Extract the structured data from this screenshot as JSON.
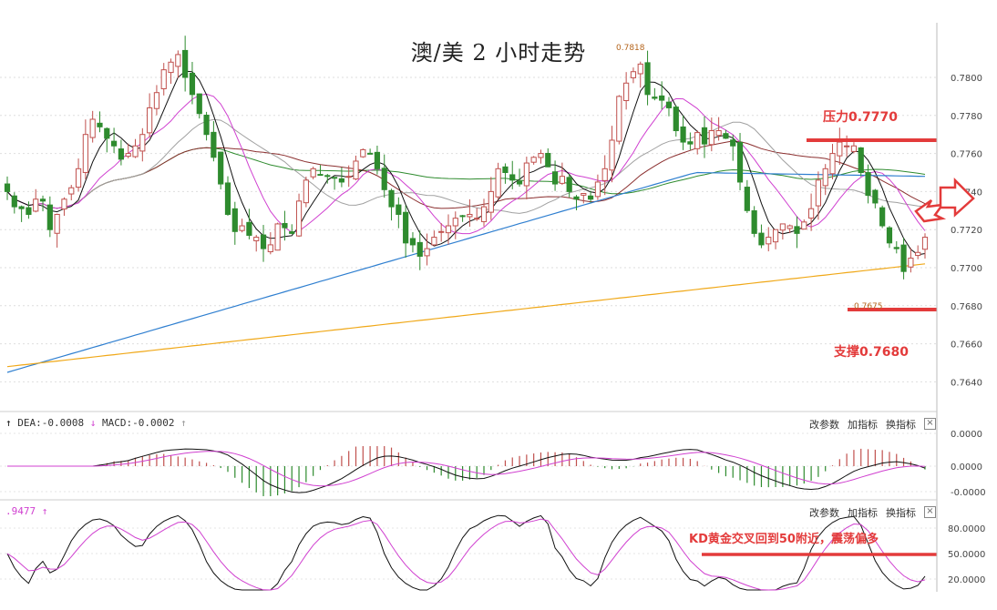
{
  "title": "澳/美 2 小时走势",
  "annotations": {
    "resistance": "压力0.7770",
    "support": "支撑0.7680",
    "high_label": "0.7818",
    "low_label": "0.7675",
    "kd_note": "KD黄金交叉回到50附近，震荡偏多"
  },
  "macd_header": {
    "dea": "DEA:-0.0008",
    "macd": "MACD:-0.0002"
  },
  "kd_header": {
    "value": ".9477"
  },
  "controls": {
    "change_params": "改参数",
    "add_indicator": "加指标",
    "switch_indicator": "换指标",
    "close": "×"
  },
  "colors": {
    "up": "#c0504d",
    "down": "#2e8b2e",
    "ma5": "#111111",
    "ma10": "#d040d0",
    "ma20": "#a0a0a0",
    "ma30": "#8b2f2f",
    "ma60": "#2e8b2e",
    "ma120": "#2f7fd0",
    "ma250": "#f0a818",
    "accent": "#e33b3b"
  },
  "chart_data": [
    {
      "type": "candlestick",
      "title": "澳/美 2 小时走势",
      "ylim": [
        0.762,
        0.783
      ],
      "yticks": [
        "0.7800",
        "0.7780",
        "0.7760",
        "0.7740",
        "0.7720",
        "0.7700",
        "0.7680",
        "0.7660",
        "0.7640"
      ],
      "grid": true,
      "horizontal_levels": [
        {
          "label": "压力0.7770",
          "value": 0.7767
        },
        {
          "label": "支撑0.7680",
          "value": 0.7678
        }
      ],
      "close": [
        0.774,
        0.7732,
        0.7731,
        0.7728,
        0.7736,
        0.7735,
        0.772,
        0.7728,
        0.7736,
        0.7742,
        0.7752,
        0.777,
        0.7778,
        0.7774,
        0.7768,
        0.7764,
        0.7757,
        0.776,
        0.7764,
        0.777,
        0.7784,
        0.7792,
        0.7804,
        0.7808,
        0.7812,
        0.78,
        0.7791,
        0.7781,
        0.777,
        0.7758,
        0.7744,
        0.7728,
        0.7719,
        0.7722,
        0.7717,
        0.7716,
        0.771,
        0.7712,
        0.7723,
        0.7721,
        0.7718,
        0.7735,
        0.7746,
        0.7752,
        0.7749,
        0.7748,
        0.7747,
        0.7745,
        0.7748,
        0.7756,
        0.7762,
        0.776,
        0.7752,
        0.7741,
        0.7732,
        0.7728,
        0.7713,
        0.7712,
        0.7706,
        0.771,
        0.7716,
        0.7719,
        0.7722,
        0.7726,
        0.7727,
        0.7728,
        0.7726,
        0.7732,
        0.774,
        0.7752,
        0.775,
        0.7746,
        0.7744,
        0.7755,
        0.7758,
        0.776,
        0.7753,
        0.7744,
        0.7748,
        0.774,
        0.7736,
        0.7739,
        0.7736,
        0.7745,
        0.7752,
        0.7767,
        0.779,
        0.7797,
        0.7803,
        0.7807,
        0.7791,
        0.7789,
        0.7788,
        0.7784,
        0.7772,
        0.7766,
        0.7765,
        0.7771,
        0.7765,
        0.7772,
        0.7772,
        0.7768,
        0.7764,
        0.7745,
        0.773,
        0.7718,
        0.7712,
        0.7716,
        0.772,
        0.7723,
        0.7722,
        0.7718,
        0.7724,
        0.7731,
        0.7746,
        0.7752,
        0.776,
        0.7766,
        0.7764,
        0.7764,
        0.775,
        0.7738,
        0.7734,
        0.7722,
        0.7713,
        0.771,
        0.7698,
        0.7705,
        0.7708,
        0.7716
      ],
      "ma_periods": [
        5,
        10,
        20,
        30,
        60,
        120,
        250
      ]
    },
    {
      "type": "line",
      "title": "MACD",
      "series": [
        {
          "name": "DEA"
        },
        {
          "name": "MACD"
        }
      ],
      "ytick_labels": [
        "0.0000",
        "0.0000",
        "-0.0000"
      ]
    },
    {
      "type": "line",
      "title": "KD",
      "ytick_labels": [
        "80.0000",
        "50.0000",
        "20.0000"
      ],
      "reference_level": 50
    }
  ]
}
